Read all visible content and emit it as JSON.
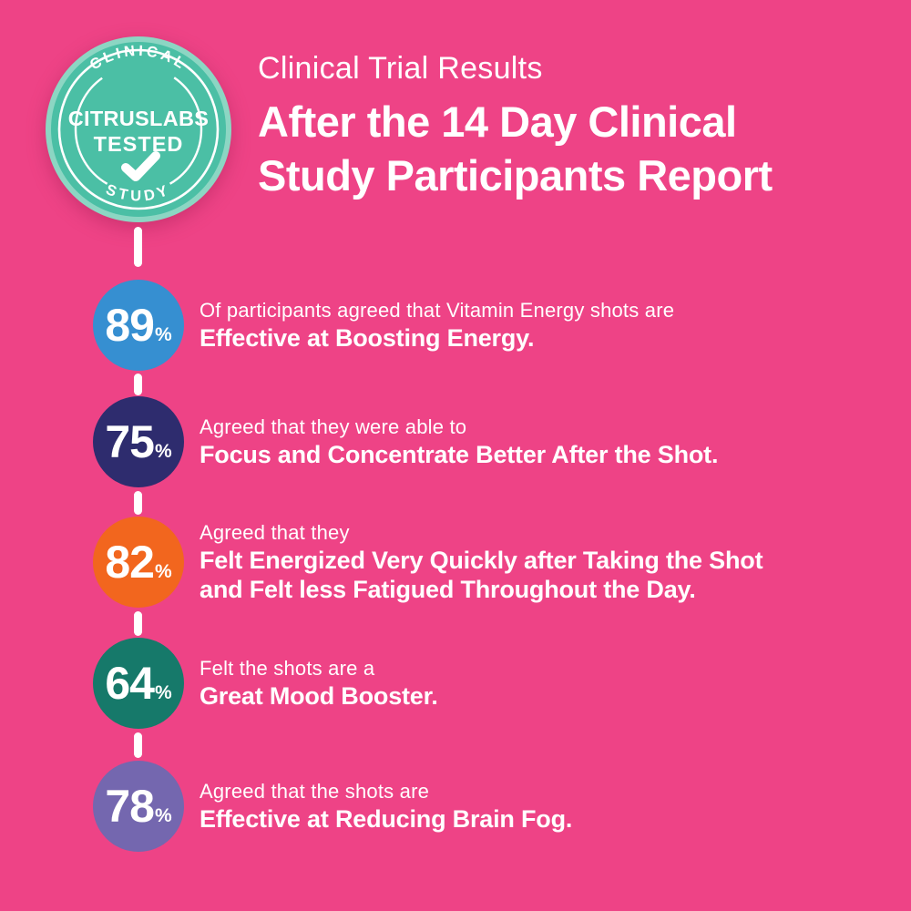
{
  "page": {
    "background_color": "#EE4386",
    "text_color": "#FFFFFF",
    "connector_color": "#FFFFFF"
  },
  "badge": {
    "top_curved_text": "CLINICAL",
    "center_line1": "CITRUSLABS",
    "center_line2": "TESTED",
    "bottom_curved_text": "STUDY",
    "icon": "checkmark-icon",
    "disc_color": "#4BBFA5",
    "rim_color": "#8CD6C3",
    "ring_color": "#FFFFFF"
  },
  "header": {
    "eyebrow": "Clinical Trial Results",
    "title_line1": "After the 14 Day Clinical",
    "title_line2": "Study Participants Report"
  },
  "stats": [
    {
      "value": "89",
      "unit": "%",
      "color": "#368FD1",
      "lines": [
        {
          "text": "Of participants agreed that Vitamin Energy shots are",
          "bold": false
        },
        {
          "text": "Effective at Boosting Energy.",
          "bold": true
        }
      ]
    },
    {
      "value": "75",
      "unit": "%",
      "color": "#2E2C6E",
      "lines": [
        {
          "text": "Agreed that they were able to",
          "bold": false
        },
        {
          "text": "Focus and Concentrate Better After the Shot.",
          "bold": true
        }
      ]
    },
    {
      "value": "82",
      "unit": "%",
      "color": "#F2661E",
      "lines": [
        {
          "text": "Agreed that they",
          "bold": false
        },
        {
          "text": "Felt Energized Very Quickly after Taking the Shot",
          "bold": true
        },
        {
          "text": "and Felt less Fatigued Throughout the Day.",
          "bold": true
        }
      ]
    },
    {
      "value": "64",
      "unit": "%",
      "color": "#16796A",
      "lines": [
        {
          "text": "Felt the shots are a",
          "bold": false
        },
        {
          "text": "Great Mood Booster.",
          "bold": true
        }
      ]
    },
    {
      "value": "78",
      "unit": "%",
      "color": "#7467AF",
      "lines": [
        {
          "text": "Agreed that the shots are",
          "bold": false
        },
        {
          "text": "Effective at Reducing Brain Fog.",
          "bold": true
        }
      ]
    }
  ],
  "chart_data": {
    "type": "table",
    "title": "After the 14 Day Clinical Study Participants Report",
    "subtitle": "Clinical Trial Results",
    "unit": "%",
    "categories": [
      "Effective at Boosting Energy",
      "Focus and Concentrate Better After the Shot",
      "Felt Energized Very Quickly after Taking the Shot and Felt less Fatigued Throughout the Day",
      "Great Mood Booster",
      "Effective at Reducing Brain Fog"
    ],
    "values": [
      89,
      75,
      82,
      64,
      78
    ]
  }
}
